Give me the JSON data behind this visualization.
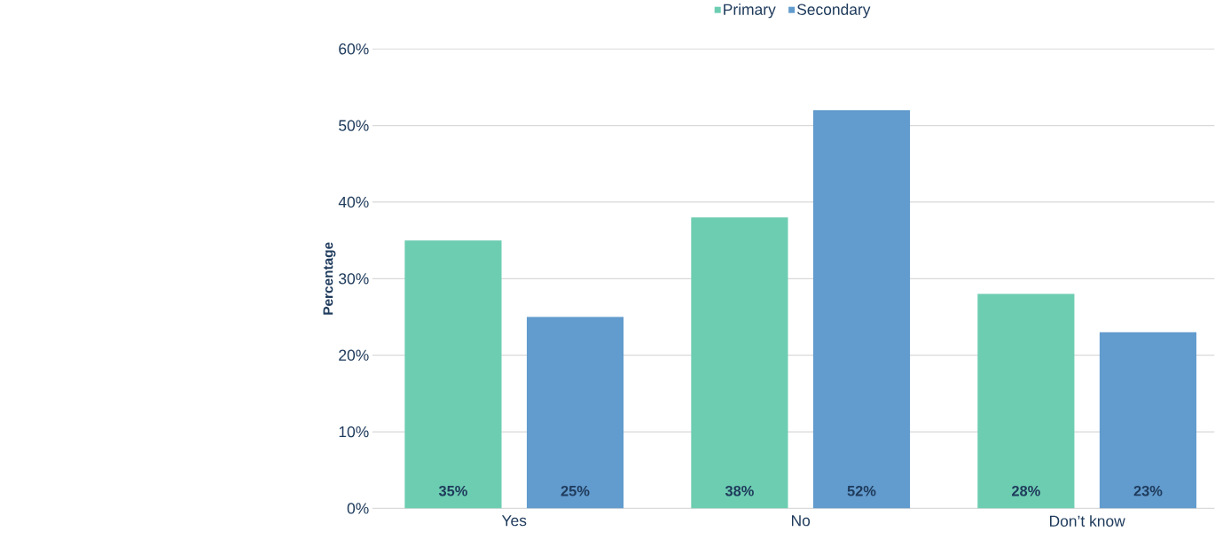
{
  "chart_data": {
    "type": "bar",
    "ylabel": "Percentage",
    "categories": [
      "Yes",
      "No",
      "Don’t know"
    ],
    "series": [
      {
        "name": "Primary",
        "color": "#6dcdb1",
        "values": [
          35,
          38,
          28
        ],
        "value_labels": [
          "35%",
          "38%",
          "28%"
        ]
      },
      {
        "name": "Secondary",
        "color": "#629bcd",
        "values": [
          25,
          52,
          23
        ],
        "value_labels": [
          "25%",
          "52%",
          "23%"
        ]
      }
    ],
    "ylim": [
      0,
      60
    ],
    "yticks": [
      {
        "value": 0,
        "label": "0%"
      },
      {
        "value": 10,
        "label": "10%"
      },
      {
        "value": 20,
        "label": "20%"
      },
      {
        "value": 30,
        "label": "30%"
      },
      {
        "value": 40,
        "label": "40%"
      },
      {
        "value": 50,
        "label": "50%"
      },
      {
        "value": 60,
        "label": "60%"
      }
    ],
    "grid": "y",
    "legend": "top"
  }
}
